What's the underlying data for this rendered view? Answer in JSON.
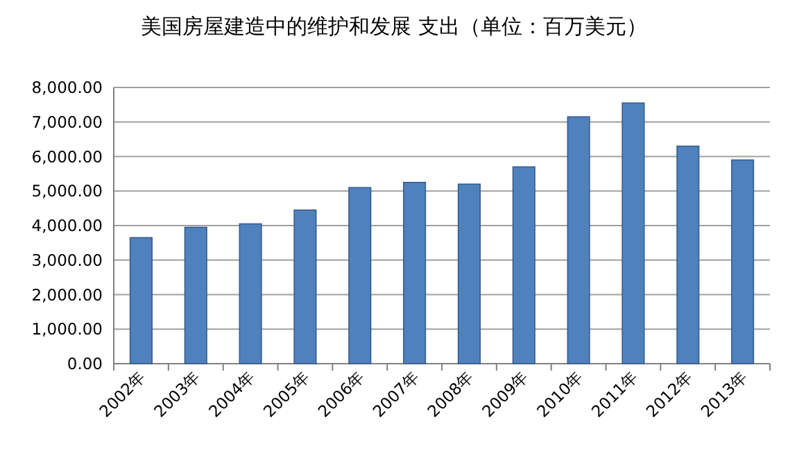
{
  "chart_data": {
    "type": "bar",
    "title": "美国房屋建造中的维护和发展 支出（单位：百万美元）",
    "categories": [
      "2002年",
      "2003年",
      "2004年",
      "2005年",
      "2006年",
      "2007年",
      "2008年",
      "2009年",
      "2010年",
      "2011年",
      "2012年",
      "2013年"
    ],
    "values": [
      3650,
      3950,
      4050,
      4450,
      5100,
      5250,
      5200,
      5700,
      7150,
      7550,
      6300,
      5900
    ],
    "color": "#4f81bd",
    "ylim": [
      0,
      8000
    ],
    "yticks": [
      {
        "value": 0,
        "label": "0.00"
      },
      {
        "value": 1000,
        "label": "1,000.00"
      },
      {
        "value": 2000,
        "label": "2,000.00"
      },
      {
        "value": 3000,
        "label": "3,000.00"
      },
      {
        "value": 4000,
        "label": "4,000.00"
      },
      {
        "value": 5000,
        "label": "5,000.00"
      },
      {
        "value": 6000,
        "label": "6,000.00"
      },
      {
        "value": 7000,
        "label": "7,000.00"
      },
      {
        "value": 8000,
        "label": "8,000.00"
      }
    ],
    "grid": "y"
  }
}
